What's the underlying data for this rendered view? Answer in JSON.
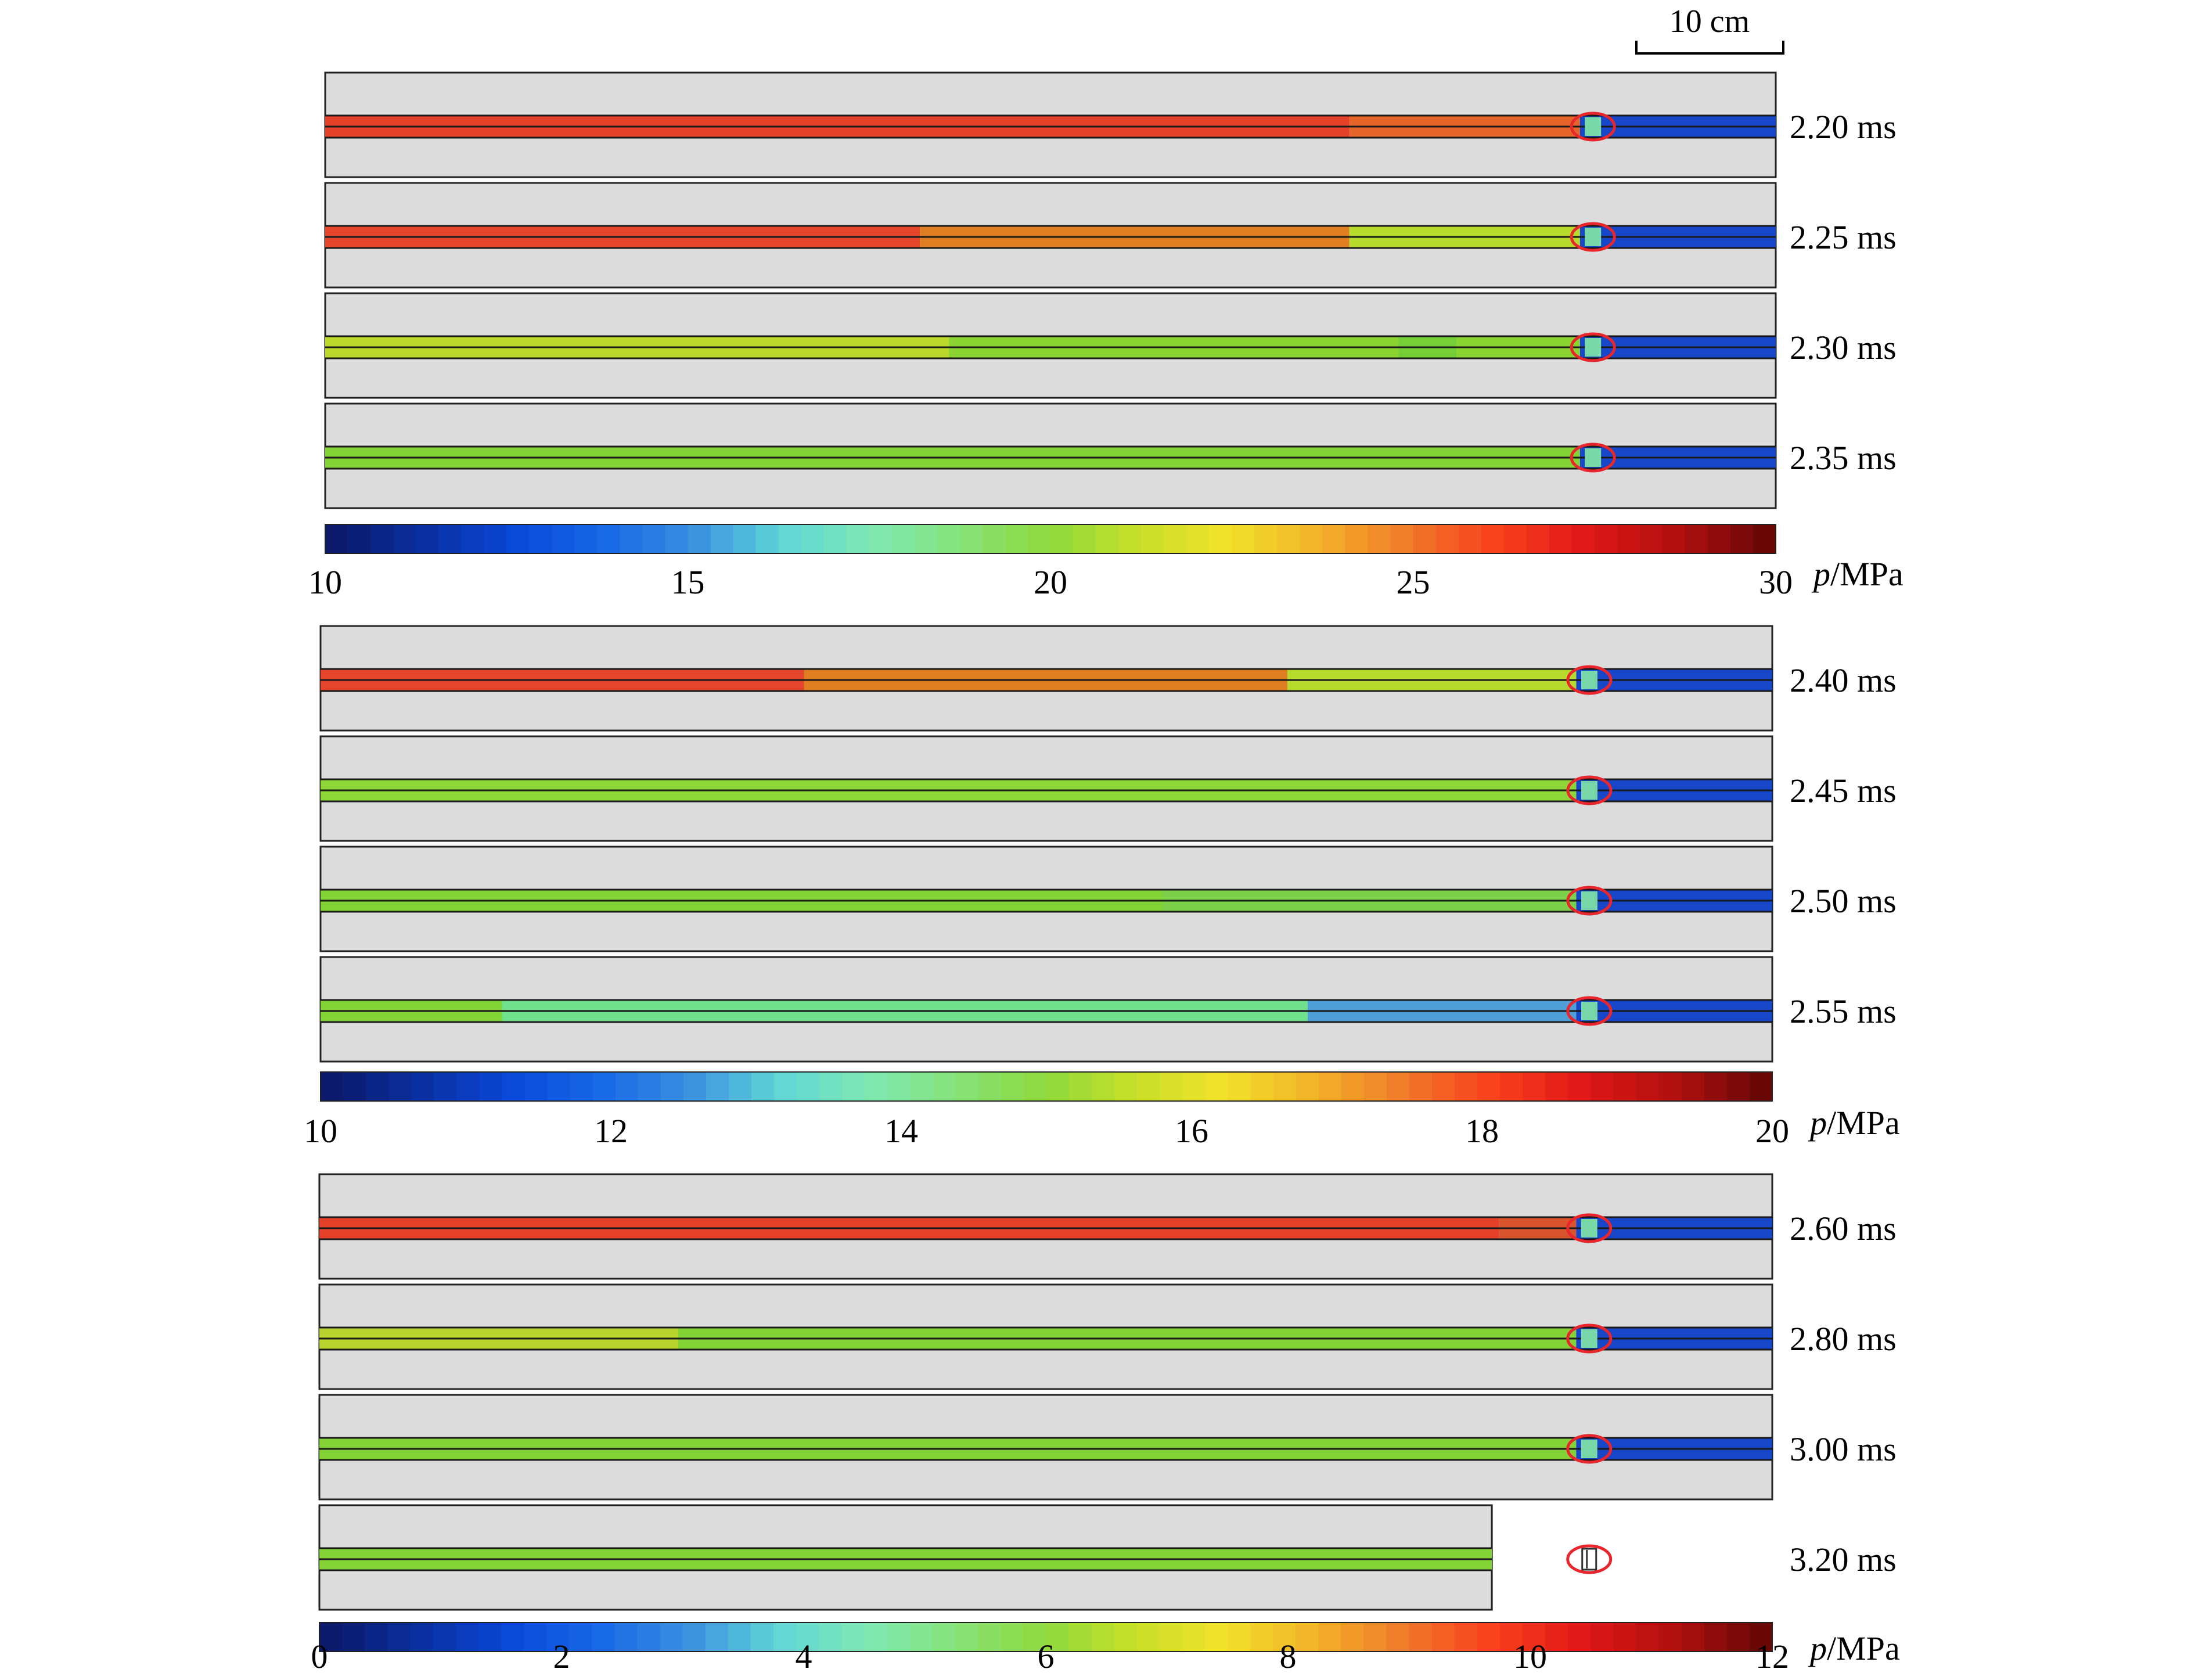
{
  "scale_bar": {
    "label": "10 cm"
  },
  "panels": [
    {
      "colorbar": {
        "ticks": [
          "10",
          "15",
          "20",
          "25",
          "30"
        ],
        "unit_italic": "p",
        "unit_rest": "/MPa"
      },
      "rows": [
        {
          "time": "2.20 ms",
          "segments": [
            {
              "to": 0.706,
              "color": "#e4402a"
            },
            {
              "to": 0.865,
              "color": "#e4642a"
            }
          ],
          "sample": "present"
        },
        {
          "time": "2.25 ms",
          "segments": [
            {
              "to": 0.41,
              "color": "#e4452c"
            },
            {
              "to": 0.706,
              "color": "#e07e22"
            },
            {
              "to": 0.865,
              "color": "#b6db2c"
            }
          ],
          "sample": "present"
        },
        {
          "time": "2.30 ms",
          "segments": [
            {
              "to": 0.43,
              "color": "#bcd82a"
            },
            {
              "to": 0.74,
              "color": "#8cd432"
            },
            {
              "to": 0.78,
              "color": "#76cf36"
            },
            {
              "to": 0.865,
              "color": "#8cd432"
            }
          ],
          "sample": "present"
        },
        {
          "time": "2.35 ms",
          "segments": [
            {
              "to": 0.865,
              "color": "#84d336"
            }
          ],
          "sample": "present"
        }
      ]
    },
    {
      "colorbar": {
        "ticks": [
          "10",
          "12",
          "14",
          "16",
          "18",
          "20"
        ],
        "unit_italic": "p",
        "unit_rest": "/MPa"
      },
      "rows": [
        {
          "time": "2.40 ms",
          "segments": [
            {
              "to": 0.333,
              "color": "#e4452c"
            },
            {
              "to": 0.666,
              "color": "#e07e22"
            },
            {
              "to": 0.865,
              "color": "#b6db2c"
            }
          ],
          "sample": "present"
        },
        {
          "time": "2.45 ms",
          "segments": [
            {
              "to": 0.865,
              "color": "#8ed538"
            }
          ],
          "sample": "present"
        },
        {
          "time": "2.50 ms",
          "segments": [
            {
              "to": 0.58,
              "color": "#84d336"
            },
            {
              "to": 0.865,
              "color": "#7cd04a"
            }
          ],
          "sample": "present"
        },
        {
          "time": "2.55 ms",
          "segments": [
            {
              "to": 0.125,
              "color": "#84d336"
            },
            {
              "to": 0.68,
              "color": "#6fe08c"
            },
            {
              "to": 0.865,
              "color": "#4f9fd8"
            }
          ],
          "sample": "present"
        }
      ]
    },
    {
      "colorbar": {
        "ticks": [
          "0",
          "2",
          "4",
          "6",
          "8",
          "10",
          "12"
        ],
        "unit_italic": "p",
        "unit_rest": "/MPa"
      },
      "rows": [
        {
          "time": "2.60 ms",
          "segments": [
            {
              "to": 0.812,
              "color": "#e4402a"
            },
            {
              "to": 0.865,
              "color": "#d8542c"
            }
          ],
          "sample": "present"
        },
        {
          "time": "2.80 ms",
          "segments": [
            {
              "to": 0.247,
              "color": "#b9d42e"
            },
            {
              "to": 0.865,
              "color": "#84d336"
            }
          ],
          "sample": "present"
        },
        {
          "time": "3.00 ms",
          "segments": [
            {
              "to": 0.865,
              "color": "#84d336"
            }
          ],
          "sample": "present"
        },
        {
          "time": "3.20 ms",
          "segments": [
            {
              "to": 0.807,
              "color": "#84d336"
            }
          ],
          "sample": "ejected"
        }
      ]
    }
  ],
  "colors": {
    "background": "#dcdcdc",
    "tube_right": "#1747c8",
    "marker": "#e8262b",
    "colormap": [
      "#0d1a6b",
      "#0a2fa0",
      "#0b48d8",
      "#1768e6",
      "#3a8fe0",
      "#5fd6d6",
      "#7fe8b4",
      "#86e27a",
      "#8fd83c",
      "#c8e02a",
      "#f2e22a",
      "#f2b22a",
      "#f07a2a",
      "#f8401c",
      "#e01818",
      "#b21010",
      "#6a0808"
    ]
  }
}
